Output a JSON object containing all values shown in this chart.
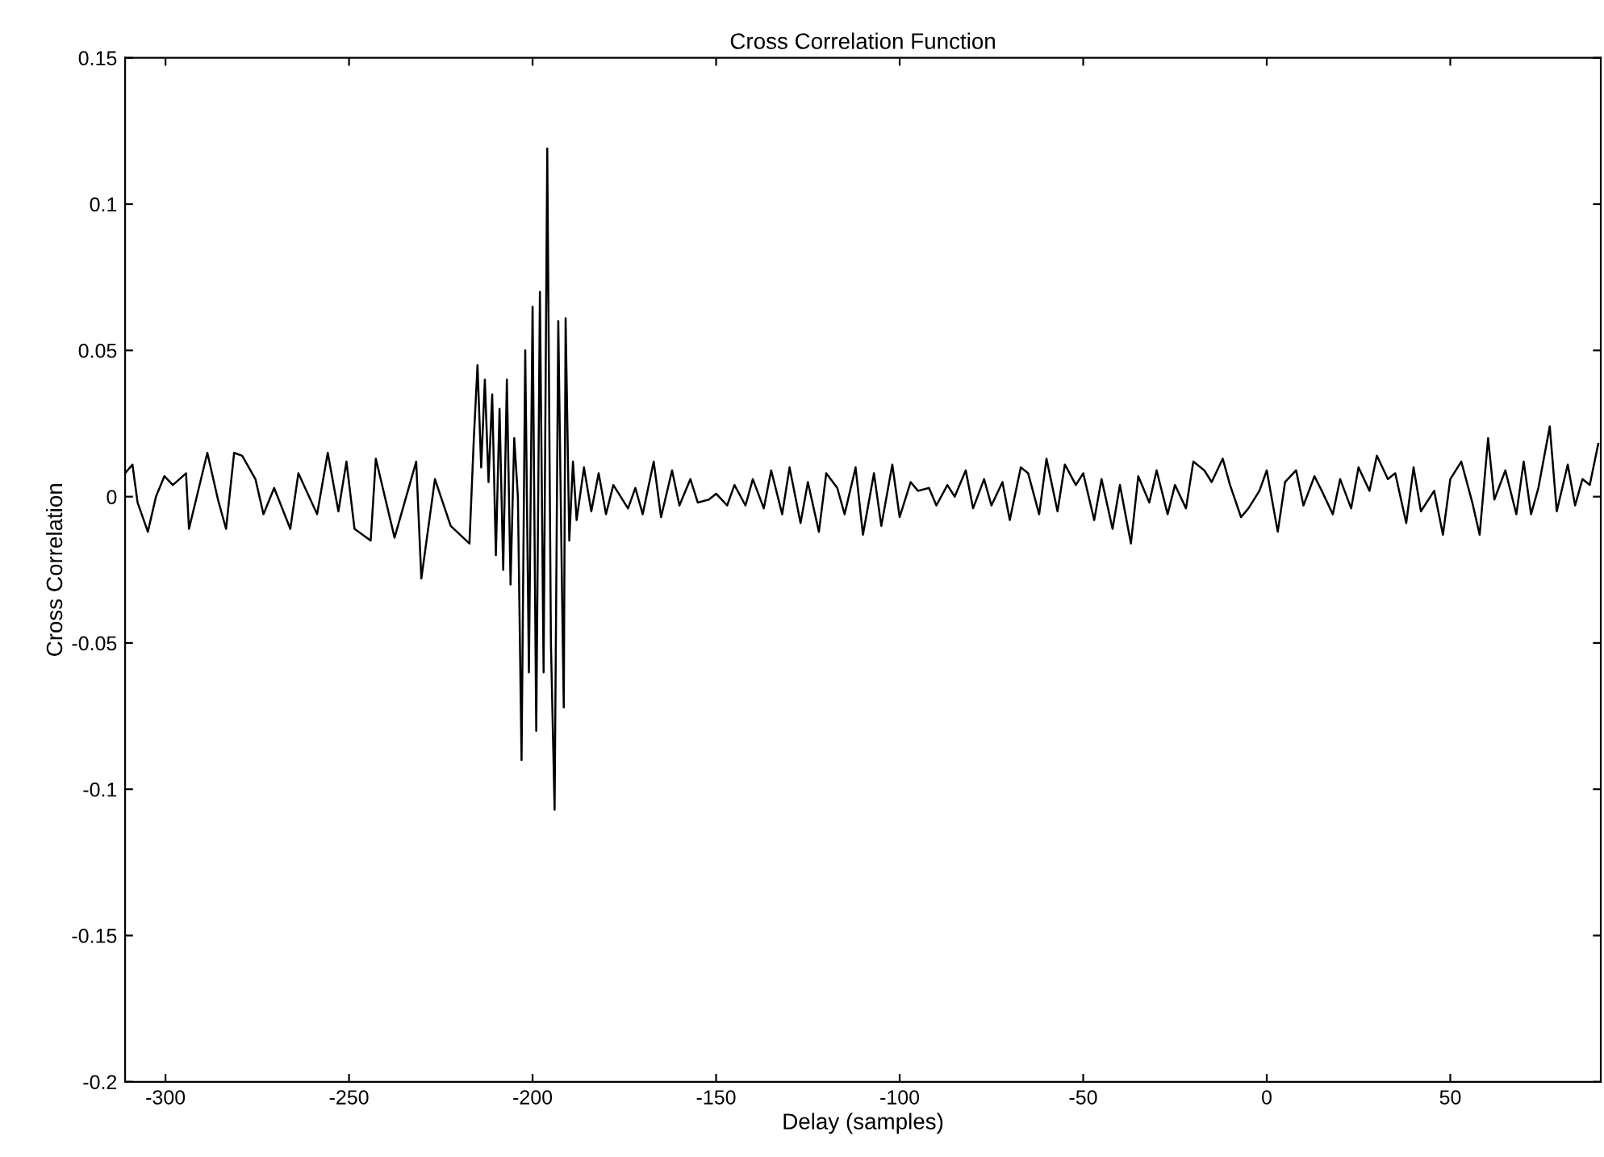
{
  "chart_data": {
    "type": "line",
    "title": "Cross Correlation Function",
    "xlabel": "Delay (samples)",
    "ylabel": "Cross Correlation",
    "xlim": [
      -311,
      91
    ],
    "ylim": [
      -0.2,
      0.15
    ],
    "xticks": [
      -300,
      -250,
      -200,
      -150,
      -100,
      -50,
      0,
      50
    ],
    "yticks": [
      {
        "value": -0.2,
        "label": "-0.2"
      },
      {
        "value": -0.15,
        "label": "-0.15"
      },
      {
        "value": -0.1,
        "label": "-0.1"
      },
      {
        "value": -0.05,
        "label": "-0.05"
      },
      0,
      0.05,
      0.1,
      0.15
    ],
    "grid": false,
    "legend": false,
    "series": [
      {
        "color": "#000000",
        "x": [
          -311,
          -309,
          -307.6,
          -304.8,
          -302.6,
          -300.3,
          -298,
          -294.4,
          -293.6,
          -288.6,
          -285.7,
          -283.5,
          -281.3,
          -279.1,
          -275.5,
          -273.3,
          -270.4,
          -266,
          -263.8,
          -258.7,
          -255.8,
          -252.9,
          -250.7,
          -248.5,
          -244.1,
          -242.7,
          -237.6,
          -231.7,
          -230.3,
          -226.6,
          -222.3,
          -217.2,
          -216,
          -215,
          -214,
          -213,
          -212,
          -211,
          -210,
          -209,
          -208,
          -207,
          -206,
          -205,
          -204,
          -203,
          -202,
          -201,
          -200,
          -199,
          -198,
          -197,
          -196,
          -195,
          -194,
          -193,
          -192,
          -191.5,
          -191,
          -190,
          -189,
          -188,
          -186,
          -184,
          -182,
          -180,
          -178,
          -176,
          -174,
          -172,
          -170,
          -167,
          -165,
          -162,
          -160,
          -157,
          -155,
          -152,
          -150,
          -147,
          -145,
          -142,
          -140,
          -137,
          -135,
          -132,
          -130,
          -127,
          -125,
          -122,
          -120,
          -117,
          -115,
          -112,
          -110,
          -107,
          -105,
          -102,
          -100,
          -97,
          -95,
          -92,
          -90,
          -87,
          -85,
          -82,
          -80,
          -77,
          -75,
          -72,
          -70,
          -67,
          -65,
          -62,
          -60,
          -57,
          -55,
          -52,
          -50,
          -47,
          -45,
          -42,
          -40,
          -37,
          -35,
          -32,
          -30,
          -27,
          -25,
          -22,
          -20,
          -17,
          -15,
          -12,
          -10,
          -7,
          -5,
          -2,
          0,
          3,
          5,
          8,
          10,
          13,
          15,
          18,
          20,
          23,
          25,
          28,
          30,
          33,
          35,
          38,
          40,
          42,
          45.6,
          48,
          50,
          53,
          56,
          58,
          60.3,
          62,
          65,
          68,
          70,
          72,
          74,
          77.1,
          79,
          82,
          84,
          86,
          88,
          90.3
        ],
        "values": [
          0.008,
          0.011,
          -0.002,
          -0.012,
          0.0,
          0.007,
          0.004,
          0.008,
          -0.011,
          0.015,
          -0.001,
          -0.011,
          0.015,
          0.014,
          0.006,
          -0.006,
          0.003,
          -0.011,
          0.008,
          -0.006,
          0.015,
          -0.005,
          0.012,
          -0.011,
          -0.015,
          0.013,
          -0.014,
          0.012,
          -0.028,
          0.006,
          -0.01,
          -0.016,
          0.02,
          0.045,
          0.01,
          0.04,
          0.005,
          0.035,
          -0.02,
          0.03,
          -0.025,
          0.04,
          -0.03,
          0.02,
          0.0,
          -0.09,
          0.05,
          -0.06,
          0.065,
          -0.08,
          0.07,
          -0.06,
          0.119,
          -0.05,
          -0.107,
          0.06,
          -0.03,
          -0.072,
          0.061,
          -0.015,
          0.012,
          -0.008,
          0.01,
          -0.005,
          0.008,
          -0.006,
          0.004,
          0.0,
          -0.004,
          0.003,
          -0.006,
          0.012,
          -0.007,
          0.009,
          -0.003,
          0.006,
          -0.002,
          -0.001,
          0.001,
          -0.003,
          0.004,
          -0.003,
          0.006,
          -0.004,
          0.009,
          -0.006,
          0.01,
          -0.009,
          0.005,
          -0.012,
          0.008,
          0.003,
          -0.006,
          0.01,
          -0.013,
          0.008,
          -0.01,
          0.011,
          -0.007,
          0.005,
          0.002,
          0.003,
          -0.003,
          0.004,
          0.0,
          0.009,
          -0.004,
          0.006,
          -0.003,
          0.005,
          -0.008,
          0.01,
          0.008,
          -0.006,
          0.013,
          -0.005,
          0.011,
          0.004,
          0.008,
          -0.008,
          0.006,
          -0.011,
          0.004,
          -0.016,
          0.007,
          -0.002,
          0.009,
          -0.006,
          0.004,
          -0.004,
          0.012,
          0.009,
          0.005,
          0.013,
          0.004,
          -0.007,
          -0.004,
          0.002,
          0.009,
          -0.012,
          0.005,
          0.009,
          -0.003,
          0.007,
          0.002,
          -0.006,
          0.006,
          -0.004,
          0.01,
          0.002,
          0.014,
          0.006,
          0.008,
          -0.009,
          0.01,
          -0.005,
          0.002,
          -0.013,
          0.006,
          0.012,
          -0.002,
          -0.013,
          0.02,
          -0.001,
          0.009,
          -0.006,
          0.012,
          -0.006,
          0.003,
          0.024,
          -0.005,
          0.011,
          -0.003,
          0.006,
          0.004,
          0.018
        ]
      }
    ]
  }
}
